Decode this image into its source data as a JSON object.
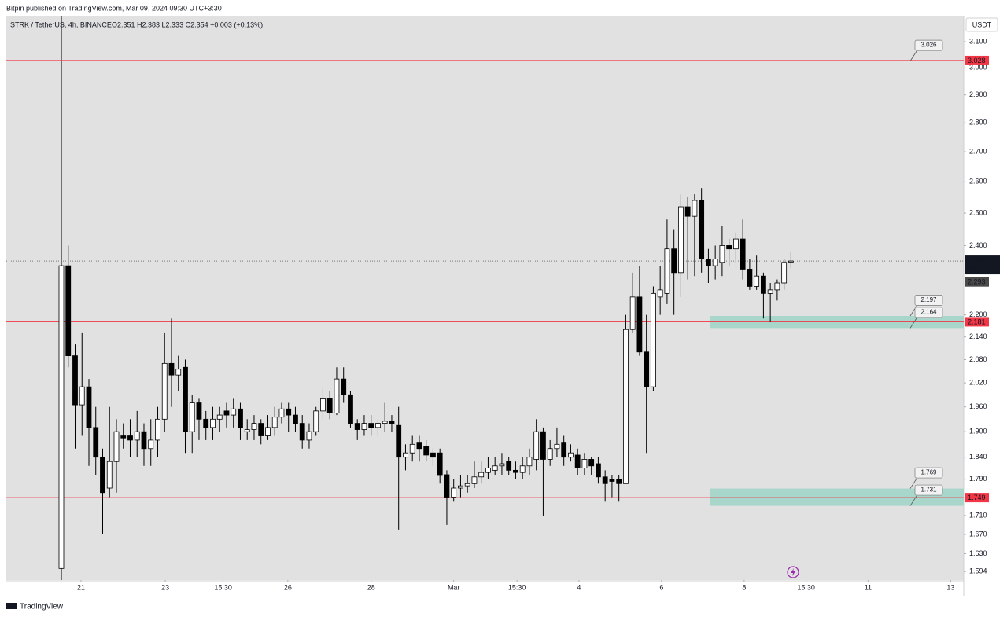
{
  "chart_data": {
    "type": "candlestick",
    "publisher": "Bitpin published on TradingView.com, Mar 09, 2024 09:30 UTC+3:30",
    "title": "STRK / TetherUS, 4h, BINANCE",
    "ohlc_text": "O2.351  H2.383  L2.333  C2.354  +0.003 (+0.13%)",
    "currency": "USDT",
    "brand": "TradingView",
    "log_scale": true,
    "up_color": "#ffffff",
    "down_color": "#000000",
    "open": [
      1.6,
      2.34,
      2.09,
      1.965,
      2.01,
      1.91,
      1.84,
      1.77,
      1.83,
      1.89,
      1.89,
      1.88,
      1.9,
      1.86,
      1.88,
      1.93,
      2.07,
      2.04,
      2.06,
      1.9,
      1.97,
      1.93,
      1.91,
      1.93,
      1.95,
      1.94,
      1.955,
      1.9,
      1.905,
      1.92,
      1.89,
      1.91,
      1.935,
      1.955,
      1.94,
      1.92,
      1.88,
      1.9,
      1.95,
      1.98,
      1.945,
      2.03,
      1.99,
      1.92,
      1.905,
      1.92,
      1.91,
      1.92,
      1.925,
      1.915,
      1.84,
      1.85,
      1.875,
      1.865,
      1.85,
      1.85,
      1.8,
      1.75,
      1.77,
      1.775,
      1.78,
      1.795,
      1.805,
      1.81,
      1.82,
      1.83,
      1.81,
      1.805,
      1.82,
      1.835,
      1.9,
      1.835,
      1.86,
      1.875,
      1.84,
      1.845,
      1.815,
      1.835,
      1.825,
      1.795,
      1.79,
      1.79,
      1.78,
      2.16,
      2.25,
      2.1,
      2.01,
      2.25,
      2.26,
      2.39,
      2.32,
      2.52,
      2.49,
      2.54,
      2.36,
      2.34,
      2.35,
      2.4,
      2.39,
      2.42,
      2.33,
      2.28,
      2.31,
      2.26,
      2.27,
      2.29,
      2.351
    ],
    "high": [
      2.36,
      2.4,
      2.12,
      2.15,
      2.03,
      1.96,
      1.86,
      1.96,
      1.93,
      1.92,
      1.93,
      1.95,
      1.92,
      1.93,
      1.96,
      2.15,
      2.19,
      2.09,
      2.08,
      1.99,
      1.98,
      1.95,
      1.96,
      1.96,
      1.97,
      1.98,
      1.97,
      1.93,
      1.94,
      1.93,
      1.94,
      1.96,
      1.97,
      1.97,
      1.96,
      1.94,
      1.92,
      1.96,
      2.01,
      2.0,
      2.06,
      2.06,
      2.0,
      1.93,
      1.94,
      1.94,
      1.93,
      1.97,
      1.94,
      1.96,
      1.87,
      1.89,
      1.89,
      1.88,
      1.86,
      1.86,
      1.81,
      1.79,
      1.8,
      1.8,
      1.83,
      1.83,
      1.84,
      1.84,
      1.85,
      1.84,
      1.83,
      1.84,
      1.86,
      1.93,
      1.91,
      1.88,
      1.91,
      1.89,
      1.87,
      1.86,
      1.85,
      1.84,
      1.84,
      1.81,
      1.8,
      1.8,
      2.2,
      2.32,
      2.34,
      2.2,
      2.28,
      2.34,
      2.48,
      2.45,
      2.56,
      2.55,
      2.56,
      2.58,
      2.39,
      2.4,
      2.46,
      2.42,
      2.44,
      2.48,
      2.36,
      2.37,
      2.32,
      2.29,
      2.3,
      2.36,
      2.383
    ],
    "low": [
      1.58,
      2.06,
      1.86,
      1.89,
      1.82,
      1.8,
      1.67,
      1.75,
      1.76,
      1.86,
      1.84,
      1.84,
      1.82,
      1.82,
      1.84,
      1.9,
      1.96,
      2.0,
      1.85,
      1.85,
      1.88,
      1.88,
      1.88,
      1.9,
      1.91,
      1.91,
      1.88,
      1.88,
      1.88,
      1.87,
      1.88,
      1.89,
      1.92,
      1.9,
      1.9,
      1.86,
      1.86,
      1.89,
      1.93,
      1.93,
      1.94,
      1.97,
      1.91,
      1.88,
      1.89,
      1.89,
      1.89,
      1.9,
      1.9,
      1.68,
      1.81,
      1.83,
      1.83,
      1.83,
      1.82,
      1.78,
      1.69,
      1.74,
      1.75,
      1.76,
      1.77,
      1.78,
      1.79,
      1.8,
      1.8,
      1.8,
      1.79,
      1.79,
      1.8,
      1.81,
      1.71,
      1.82,
      1.84,
      1.82,
      1.83,
      1.8,
      1.8,
      1.8,
      1.78,
      1.74,
      1.75,
      1.74,
      1.78,
      2.15,
      2.09,
      1.85,
      2.0,
      2.2,
      2.23,
      2.2,
      2.25,
      2.3,
      2.31,
      2.32,
      2.29,
      2.3,
      2.31,
      2.34,
      2.35,
      2.3,
      2.27,
      2.27,
      2.19,
      2.18,
      2.24,
      2.27,
      2.333
    ],
    "close": [
      2.34,
      2.09,
      1.965,
      2.01,
      1.91,
      1.84,
      1.76,
      1.83,
      1.9,
      1.885,
      1.88,
      1.9,
      1.86,
      1.88,
      1.93,
      2.07,
      2.04,
      2.055,
      1.9,
      1.97,
      1.93,
      1.91,
      1.93,
      1.94,
      1.94,
      1.955,
      1.91,
      1.905,
      1.92,
      1.89,
      1.91,
      1.935,
      1.955,
      1.94,
      1.92,
      1.88,
      1.9,
      1.95,
      1.98,
      1.945,
      2.03,
      1.99,
      1.92,
      1.905,
      1.92,
      1.91,
      1.92,
      1.925,
      1.92,
      1.84,
      1.85,
      1.87,
      1.86,
      1.845,
      1.84,
      1.8,
      1.75,
      1.77,
      1.775,
      1.78,
      1.795,
      1.805,
      1.815,
      1.82,
      1.825,
      1.81,
      1.805,
      1.82,
      1.84,
      1.9,
      1.835,
      1.86,
      1.87,
      1.84,
      1.85,
      1.815,
      1.835,
      1.82,
      1.795,
      1.78,
      1.785,
      1.78,
      2.16,
      2.25,
      2.1,
      2.01,
      2.26,
      2.27,
      2.39,
      2.32,
      2.52,
      2.49,
      2.54,
      2.36,
      2.34,
      2.36,
      2.4,
      2.39,
      2.42,
      2.33,
      2.28,
      2.31,
      2.26,
      2.27,
      2.29,
      2.35,
      2.354
    ],
    "xlim": [
      -8,
      131.1
    ],
    "xticks": [
      {
        "value": 2.86,
        "label": "21"
      },
      {
        "value": 15.1,
        "label": "23"
      },
      {
        "value": 23.5,
        "label": "15:30"
      },
      {
        "value": 32.9,
        "label": "26"
      },
      {
        "value": 45.0,
        "label": "28"
      },
      {
        "value": 57.0,
        "label": "Mar"
      },
      {
        "value": 66.2,
        "label": "15:30"
      },
      {
        "value": 75.2,
        "label": "4"
      },
      {
        "value": 87.2,
        "label": "6"
      },
      {
        "value": 99.2,
        "label": "8"
      },
      {
        "value": 108.2,
        "label": "15:30"
      },
      {
        "value": 117.2,
        "label": "11"
      },
      {
        "value": 129.2,
        "label": "13"
      }
    ],
    "ylim": [
      1.577,
      3.203
    ],
    "yticks": [
      {
        "value": 3.1,
        "label": "3.100"
      },
      {
        "value": 3.0,
        "label": "3.000"
      },
      {
        "value": 2.9,
        "label": "2.900"
      },
      {
        "value": 2.8,
        "label": "2.800"
      },
      {
        "value": 2.7,
        "label": "2.700"
      },
      {
        "value": 2.6,
        "label": "2.600"
      },
      {
        "value": 2.5,
        "label": "2.500"
      },
      {
        "value": 2.4,
        "label": "2.400"
      },
      {
        "value": 2.2,
        "label": "2.200"
      },
      {
        "value": 2.14,
        "label": "2.140"
      },
      {
        "value": 2.08,
        "label": "2.080"
      },
      {
        "value": 2.02,
        "label": "2.020"
      },
      {
        "value": 1.96,
        "label": "1.960"
      },
      {
        "value": 1.9,
        "label": "1.900"
      },
      {
        "value": 1.84,
        "label": "1.840"
      },
      {
        "value": 1.79,
        "label": "1.790"
      },
      {
        "value": 1.71,
        "label": "1.710"
      },
      {
        "value": 1.67,
        "label": "1.670"
      },
      {
        "value": 1.63,
        "label": "1.630"
      },
      1.594
    ],
    "hlines": [
      3.028,
      2.181,
      1.749
    ],
    "hline_color": "#f23645",
    "zones": [
      {
        "top": 2.197,
        "bottom": 2.164
      },
      {
        "top": 1.769,
        "bottom": 1.731
      }
    ],
    "zone_color": "#a9d6cb",
    "callouts": [
      3.026
    ],
    "last_price": 2.354,
    "countdown": "01:59:12",
    "marker_price": 2.293
  }
}
